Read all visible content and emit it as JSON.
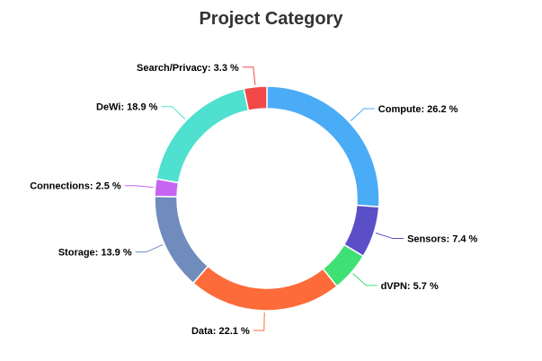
{
  "chart_data": {
    "type": "pie",
    "variant": "donut",
    "title": "Project Category",
    "slices": [
      {
        "name": "Compute",
        "value": 26.2,
        "label": "Compute: 26.2 %",
        "color": "#4aabf7"
      },
      {
        "name": "Sensors",
        "value": 7.4,
        "label": "Sensors: 7.4 %",
        "color": "#5b4fc8"
      },
      {
        "name": "dVPN",
        "value": 5.7,
        "label": "dVPN: 5.7 %",
        "color": "#3fe074"
      },
      {
        "name": "Data",
        "value": 22.1,
        "label": "Data: 22.1 %",
        "color": "#fd6b3a"
      },
      {
        "name": "Storage",
        "value": 13.9,
        "label": "Storage: 13.9 %",
        "color": "#6f8cbd"
      },
      {
        "name": "Connections",
        "value": 2.5,
        "label": "Connections: 2.5 %",
        "color": "#c565f2"
      },
      {
        "name": "DeWi",
        "value": 18.9,
        "label": "DeWi: 18.9 %",
        "color": "#4fe0cf"
      },
      {
        "name": "Search/Privacy",
        "value": 3.3,
        "label": "Search/Privacy: 3.3 %",
        "color": "#f24848"
      }
    ]
  }
}
